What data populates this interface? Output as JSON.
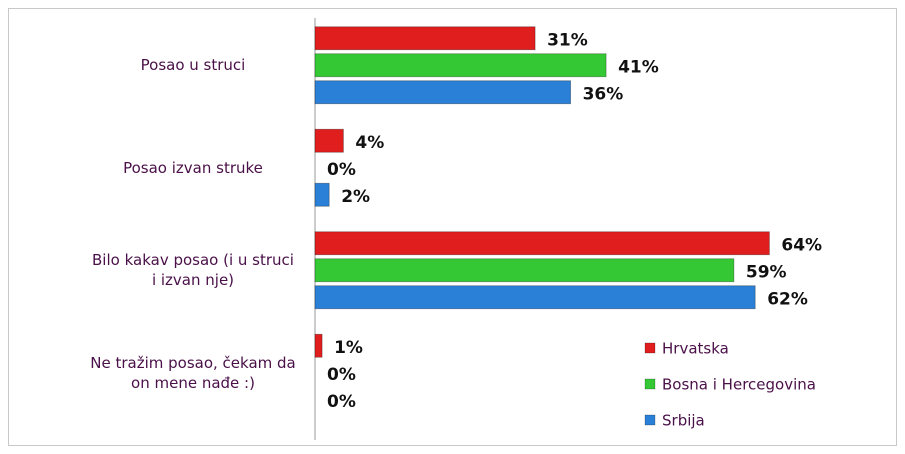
{
  "chart_data": {
    "type": "bar",
    "orientation": "horizontal",
    "categories": [
      "Posao u struci",
      "Posao izvan struke",
      "Bilo kakav posao (i u struci i izvan nje)",
      "Ne tražim posao, čekam da on mene nađe :)"
    ],
    "series": [
      {
        "name": "Hrvatska",
        "color": "#e01e1e",
        "values": [
          31,
          4,
          64,
          1
        ],
        "value_labels": [
          "31%",
          "4%",
          "64%",
          "1%"
        ]
      },
      {
        "name": "Bosna i Hercegovina",
        "color": "#34c934",
        "values": [
          41,
          0,
          59,
          0
        ],
        "value_labels": [
          "41%",
          "0%",
          "59%",
          "0%"
        ]
      },
      {
        "name": "Srbija",
        "color": "#2a7fd6",
        "values": [
          36,
          2,
          62,
          0
        ],
        "value_labels": [
          "36%",
          "2%",
          "62%",
          "0%"
        ]
      }
    ],
    "legend": "bottom-right"
  }
}
